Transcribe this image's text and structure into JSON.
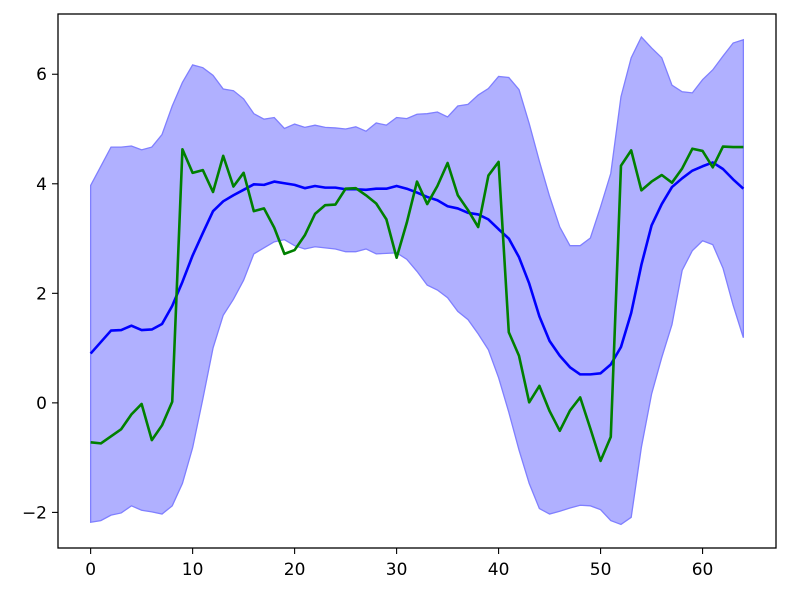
{
  "chart_data": {
    "type": "line",
    "title": "",
    "xlabel": "",
    "ylabel": "",
    "xlim": [
      -3.2,
      67.2
    ],
    "ylim": [
      -2.65,
      7.1
    ],
    "grid": false,
    "x_ticks": [
      0,
      10,
      20,
      30,
      40,
      50,
      60
    ],
    "y_ticks": [
      -2,
      0,
      2,
      4,
      6
    ],
    "x_tick_labels": [
      "0",
      "10",
      "20",
      "30",
      "40",
      "50",
      "60"
    ],
    "y_tick_labels": [
      "−2",
      "0",
      "2",
      "4",
      "6"
    ],
    "colors": {
      "mean": "#0000ff",
      "observed": "#008000",
      "band_fill": "#b0b0ff",
      "band_edge": "#7f7fff"
    },
    "x": [
      0,
      1,
      2,
      3,
      4,
      5,
      6,
      7,
      8,
      9,
      10,
      11,
      12,
      13,
      14,
      15,
      16,
      17,
      18,
      19,
      20,
      21,
      22,
      23,
      24,
      25,
      26,
      27,
      28,
      29,
      30,
      31,
      32,
      33,
      34,
      35,
      36,
      37,
      38,
      39,
      40,
      41,
      42,
      43,
      44,
      45,
      46,
      47,
      48,
      49,
      50,
      51,
      52,
      53,
      54,
      55,
      56,
      57,
      58,
      59,
      60,
      61,
      62,
      63,
      64
    ],
    "series": [
      {
        "role": "band",
        "upper": [
          3.97,
          4.32,
          4.67,
          4.67,
          4.69,
          4.62,
          4.67,
          4.9,
          5.42,
          5.85,
          6.17,
          6.12,
          5.98,
          5.73,
          5.7,
          5.55,
          5.28,
          5.18,
          5.21,
          5.01,
          5.09,
          5.03,
          5.07,
          5.03,
          5.02,
          5.0,
          5.04,
          4.96,
          5.11,
          5.07,
          5.21,
          5.19,
          5.27,
          5.28,
          5.31,
          5.22,
          5.42,
          5.45,
          5.62,
          5.74,
          5.96,
          5.94,
          5.72,
          5.1,
          4.41,
          3.77,
          3.21,
          2.87,
          2.87,
          3.01,
          3.58,
          4.19,
          5.59,
          6.3,
          6.68,
          6.48,
          6.3,
          5.8,
          5.68,
          5.66,
          5.9,
          6.08,
          6.33,
          6.57,
          6.63
        ],
        "lower": [
          -2.18,
          -2.15,
          -2.05,
          -2.01,
          -1.88,
          -1.96,
          -1.99,
          -2.03,
          -1.88,
          -1.47,
          -0.82,
          0.07,
          1.0,
          1.6,
          1.89,
          2.24,
          2.72,
          2.83,
          2.94,
          2.98,
          2.87,
          2.81,
          2.85,
          2.83,
          2.81,
          2.76,
          2.76,
          2.81,
          2.72,
          2.73,
          2.74,
          2.62,
          2.4,
          2.15,
          2.06,
          1.92,
          1.67,
          1.52,
          1.26,
          0.97,
          0.46,
          -0.17,
          -0.86,
          -1.47,
          -1.93,
          -2.03,
          -1.98,
          -1.92,
          -1.87,
          -1.88,
          -1.95,
          -2.15,
          -2.22,
          -2.09,
          -0.81,
          0.16,
          0.83,
          1.43,
          2.42,
          2.78,
          2.96,
          2.89,
          2.46,
          1.78,
          1.19
        ]
      },
      {
        "role": "mean",
        "values": [
          0.9,
          1.11,
          1.32,
          1.33,
          1.41,
          1.33,
          1.34,
          1.44,
          1.77,
          2.21,
          2.69,
          3.1,
          3.5,
          3.68,
          3.79,
          3.89,
          3.99,
          3.98,
          4.04,
          4.01,
          3.98,
          3.92,
          3.96,
          3.93,
          3.93,
          3.9,
          3.9,
          3.89,
          3.91,
          3.91,
          3.96,
          3.91,
          3.84,
          3.76,
          3.7,
          3.59,
          3.55,
          3.47,
          3.44,
          3.35,
          3.17,
          3.0,
          2.66,
          2.18,
          1.58,
          1.13,
          0.86,
          0.65,
          0.52,
          0.52,
          0.54,
          0.7,
          1.02,
          1.64,
          2.52,
          3.24,
          3.63,
          3.94,
          4.1,
          4.24,
          4.32,
          4.39,
          4.27,
          4.08,
          3.91
        ]
      },
      {
        "role": "observed",
        "values": [
          -0.72,
          -0.74,
          -0.61,
          -0.48,
          -0.21,
          -0.02,
          -0.68,
          -0.41,
          0.02,
          4.63,
          4.2,
          4.25,
          3.85,
          4.51,
          3.95,
          4.2,
          3.5,
          3.55,
          3.2,
          2.72,
          2.79,
          3.06,
          3.45,
          3.61,
          3.62,
          3.91,
          3.92,
          3.79,
          3.64,
          3.35,
          2.65,
          3.29,
          4.04,
          3.63,
          3.96,
          4.38,
          3.79,
          3.52,
          3.21,
          4.15,
          4.4,
          1.29,
          0.86,
          0.01,
          0.31,
          -0.15,
          -0.51,
          -0.14,
          0.1,
          -0.47,
          -1.06,
          -0.62,
          4.33,
          4.61,
          3.88,
          4.04,
          4.16,
          4.02,
          4.28,
          4.64,
          4.6,
          4.3,
          4.68,
          4.67,
          4.67
        ]
      }
    ]
  }
}
